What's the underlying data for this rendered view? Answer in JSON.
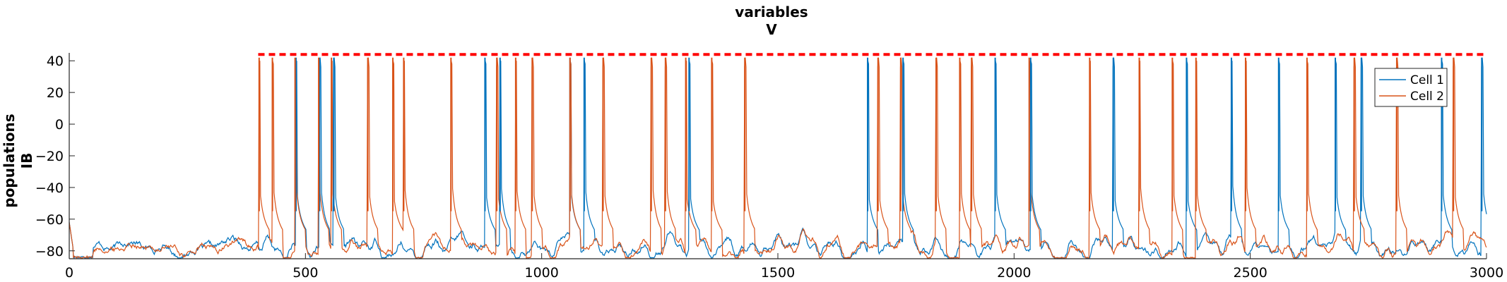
{
  "chart_data": {
    "type": "line",
    "title": [
      "variables",
      "V"
    ],
    "ylabel": [
      "populations",
      "IB"
    ],
    "xlabel": "",
    "xlim": [
      0,
      3000
    ],
    "ylim": [
      -85,
      45
    ],
    "x_ticks": [
      0,
      500,
      1000,
      1500,
      2000,
      2500,
      3000
    ],
    "y_ticks": [
      40,
      20,
      0,
      -20,
      -40,
      -60,
      -80
    ],
    "legend_position": "top-right",
    "reference_line": {
      "y": 44,
      "x_range": [
        400,
        3000
      ],
      "color": "#ff0000",
      "style": "dashed"
    },
    "baseline": {
      "rest_mV": -78,
      "noise_start": 50,
      "active_start": 400,
      "trough_mV": -84
    },
    "series": [
      {
        "name": "Cell 1",
        "color": "#0072bd",
        "spike_times": [
          480,
          530,
          560,
          880,
          912,
          1060,
          1090,
          1312,
          1690,
          1765,
          1960,
          2035,
          2210,
          2365,
          2460,
          2560,
          2680,
          2735,
          2905,
          2990
        ]
      },
      {
        "name": "Cell 2",
        "color": "#d95319",
        "spike_times": [
          402,
          430,
          478,
          528,
          555,
          632,
          685,
          708,
          808,
          905,
          945,
          980,
          1060,
          1130,
          1232,
          1262,
          1305,
          1360,
          1430,
          1712,
          1760,
          1835,
          1885,
          1910,
          2032,
          2160,
          2265,
          2335,
          2385,
          2490,
          2620,
          2720,
          2810,
          2930
        ]
      }
    ]
  }
}
